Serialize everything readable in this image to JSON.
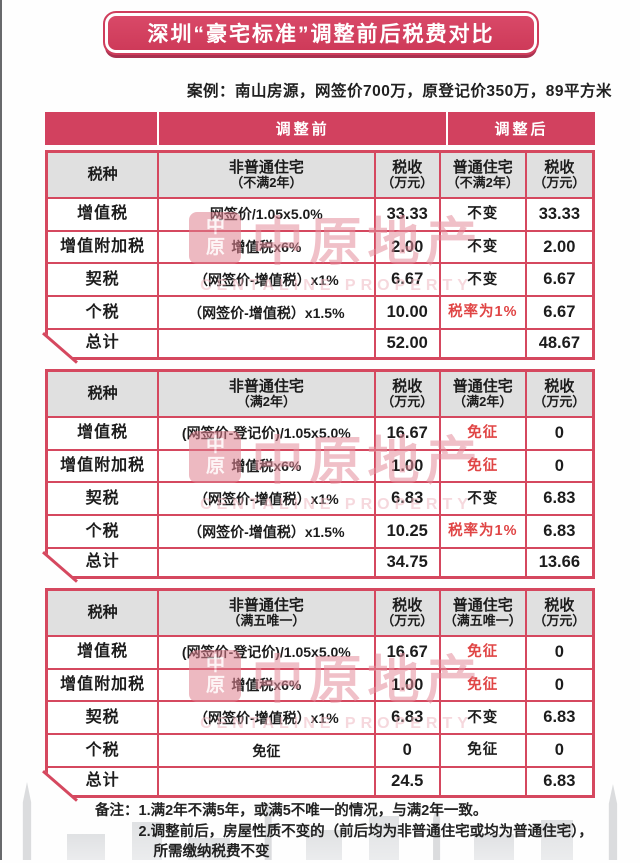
{
  "page": {
    "title": "深圳“豪宅标准”调整前后税费对比",
    "case_line": "案例：南山房源，网签价700万，原登记价350万，89平方米",
    "band": {
      "before": "调整前",
      "after": "调整后"
    },
    "notes": {
      "label": "备注：",
      "line1": "1.满2年不满5年，或满5不唯一的情况，与满2年一致。",
      "line2": "2.调整前后，房屋性质不变的（前后均为非普通住宅或均为普通住宅），",
      "line3": "所需缴纳税费不变"
    }
  },
  "watermark": {
    "logo_top": "中",
    "logo_bottom": "原",
    "name": "中原地产",
    "subtitle": "CENTALINE PROPERTY"
  },
  "colors": {
    "banner_red": "#cf3a59",
    "border_red": "#d5485f",
    "header_gray": "#e0e0e0",
    "accent_red": "#e04545",
    "watermark_pink": "#e48d9c"
  },
  "tables": [
    {
      "headers": {
        "c1": "税种",
        "c2": "非普通住宅",
        "c2s": "（不满2年）",
        "c3": "税收",
        "c3s": "（万元）",
        "c4": "普通住宅",
        "c4s": "（不满2年）",
        "c5": "税收",
        "c5s": "（万元）"
      },
      "rows": [
        {
          "tax": "增值税",
          "formula": "网签价/1.05x5.0%",
          "v1": "33.33",
          "note": "不变",
          "v2": "33.33"
        },
        {
          "tax": "增值附加税",
          "formula": "增值税x6%",
          "v1": "2.00",
          "note": "不变",
          "v2": "2.00"
        },
        {
          "tax": "契税",
          "formula": "（网签价-增值税）x1%",
          "v1": "6.67",
          "note": "不变",
          "v2": "6.67"
        },
        {
          "tax": "个税",
          "formula": "（网签价-增值税）x1.5%",
          "v1": "10.00",
          "note": "税率为1%",
          "v2": "6.67"
        },
        {
          "tax": "总计",
          "formula": "",
          "v1": "52.00",
          "note": "",
          "v2": "48.67"
        }
      ]
    },
    {
      "headers": {
        "c1": "税种",
        "c2": "非普通住宅",
        "c2s": "（满2年）",
        "c3": "税收",
        "c3s": "（万元）",
        "c4": "普通住宅",
        "c4s": "（满2年）",
        "c5": "税收",
        "c5s": "（万元）"
      },
      "rows": [
        {
          "tax": "增值税",
          "formula": "(网签价-登记价)/1.05x5.0%",
          "v1": "16.67",
          "note": "免征",
          "v2": "0"
        },
        {
          "tax": "增值附加税",
          "formula": "增值税x6%",
          "v1": "1.00",
          "note": "免征",
          "v2": "0"
        },
        {
          "tax": "契税",
          "formula": "（网签价-增值税）x1%",
          "v1": "6.83",
          "note": "不变",
          "v2": "6.83"
        },
        {
          "tax": "个税",
          "formula": "（网签价-增值税）x1.5%",
          "v1": "10.25",
          "note": "税率为1%",
          "v2": "6.83"
        },
        {
          "tax": "总计",
          "formula": "",
          "v1": "34.75",
          "note": "",
          "v2": "13.66"
        }
      ]
    },
    {
      "headers": {
        "c1": "税种",
        "c2": "非普通住宅",
        "c2s": "（满五唯一）",
        "c3": "税收",
        "c3s": "（万元）",
        "c4": "普通住宅",
        "c4s": "（满五唯一）",
        "c5": "税收",
        "c5s": "（万元）"
      },
      "rows": [
        {
          "tax": "增值税",
          "formula": "(网签价-登记价)/1.05x5.0%",
          "v1": "16.67",
          "note": "免征",
          "v2": "0"
        },
        {
          "tax": "增值附加税",
          "formula": "增值税x6%",
          "v1": "1.00",
          "note": "免征",
          "v2": "0"
        },
        {
          "tax": "契税",
          "formula": "（网签价-增值税）x1%",
          "v1": "6.83",
          "note": "不变",
          "v2": "6.83"
        },
        {
          "tax": "个税",
          "formula": "免征",
          "v1": "0",
          "note": "免征",
          "v2": "0"
        },
        {
          "tax": "总计",
          "formula": "",
          "v1": "24.5",
          "note": "",
          "v2": "6.83"
        }
      ]
    }
  ]
}
